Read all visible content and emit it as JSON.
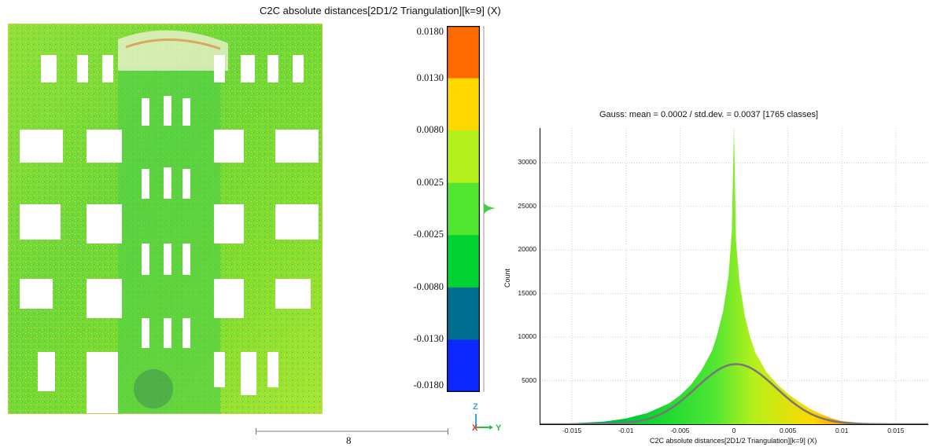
{
  "cloud_view": {
    "title": "C2C absolute distances[2D1/2 Triangulation][k=9] (X)",
    "scale_bar_label": "8",
    "axes": {
      "z": "Z",
      "x": "X",
      "y": "Y"
    },
    "colors": {
      "z": "#3aa0e8",
      "x": "#e03030",
      "y": "#22c040"
    }
  },
  "color_scale": {
    "labels": [
      "0.0180",
      "0.0130",
      "0.0080",
      "0.0025",
      "-0.0025",
      "-0.0080",
      "-0.0130",
      "-0.0180"
    ],
    "band_colors": [
      "#ff6a00",
      "#ffd800",
      "#b4f01c",
      "#50e632",
      "#00d232",
      "#006e91",
      "#0a28ff"
    ]
  },
  "chart_data": {
    "type": "histogram",
    "title": "Gauss: mean = 0.0002 / std.dev. = 0.0037 [1765 classes]",
    "xlabel": "C2C absolute distances[2D1/2 Triangulation][k=9] (X)",
    "ylabel": "Count",
    "xlim": [
      -0.018,
      0.018
    ],
    "ylim": [
      0,
      34000
    ],
    "x_ticks": [
      -0.015,
      -0.01,
      -0.005,
      0,
      0.005,
      0.01,
      0.015
    ],
    "x_tick_labels": [
      "-0.015",
      "-0.01",
      "-0.005",
      "0",
      "0.005",
      "0.01",
      "0.015"
    ],
    "y_ticks": [
      5000,
      10000,
      15000,
      20000,
      25000,
      30000
    ],
    "y_tick_labels": [
      "5000",
      "10000",
      "15000",
      "20000",
      "25000",
      "30000"
    ],
    "grid": true,
    "gauss": {
      "mean": 0.0002,
      "std_dev": 0.0037,
      "peak": 6900,
      "color": "#777777"
    },
    "histogram_profile": {
      "x": [
        -0.018,
        -0.015,
        -0.012,
        -0.01,
        -0.008,
        -0.006,
        -0.005,
        -0.004,
        -0.003,
        -0.002,
        -0.0015,
        -0.001,
        -0.0005,
        -0.0002,
        0,
        0.0002,
        0.0005,
        0.001,
        0.0015,
        0.002,
        0.003,
        0.004,
        0.005,
        0.006,
        0.007,
        0.008,
        0.009,
        0.01,
        0.012,
        0.015,
        0.018
      ],
      "counts": [
        0,
        100,
        300,
        650,
        1300,
        2400,
        3300,
        4500,
        6200,
        8500,
        10500,
        13000,
        17000,
        22000,
        34000,
        21000,
        16500,
        12500,
        10000,
        8200,
        6000,
        4600,
        3500,
        2600,
        1800,
        1200,
        700,
        350,
        120,
        40,
        0
      ]
    }
  }
}
